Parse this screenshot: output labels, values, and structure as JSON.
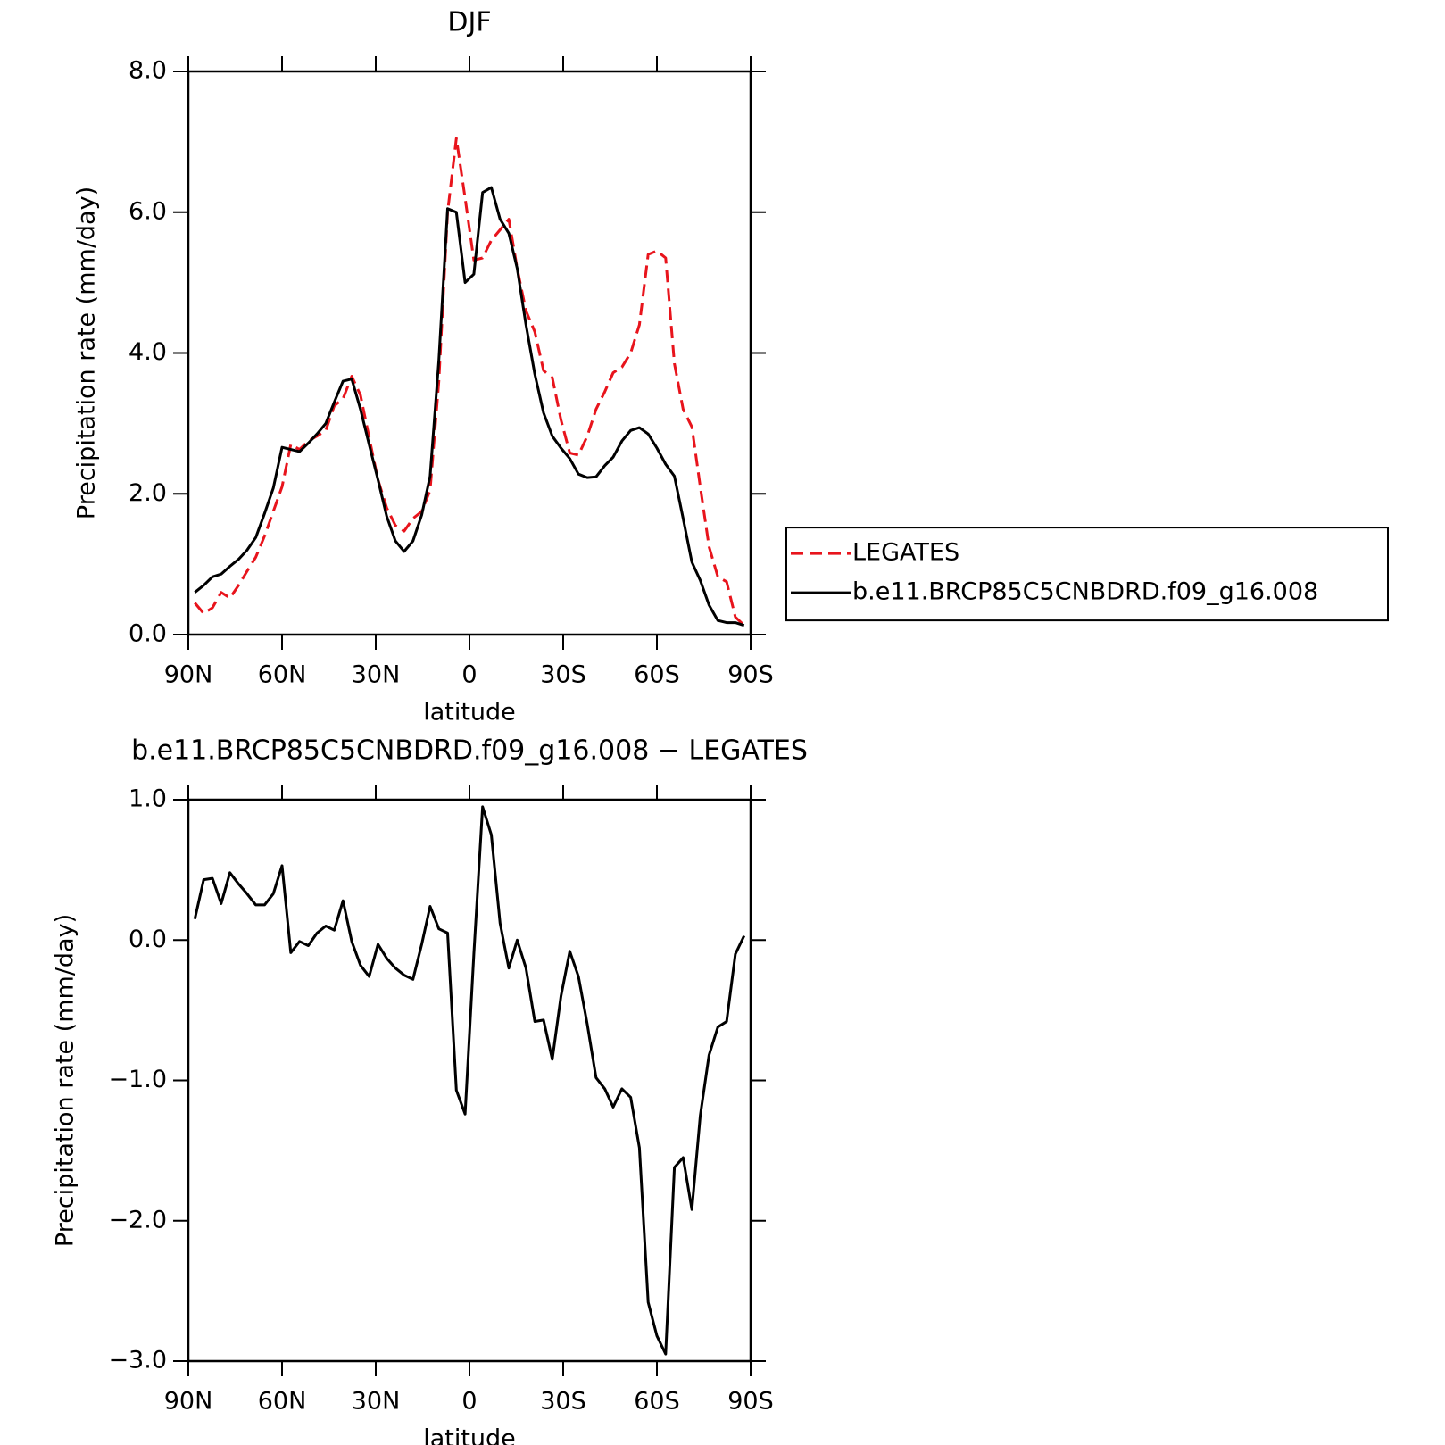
{
  "chart_data": [
    {
      "type": "line",
      "title": "DJF",
      "xlabel": "latitude",
      "ylabel": "Precipitation rate (mm/day)",
      "xlim": [
        90,
        -90
      ],
      "xticks": [
        {
          "value": 90,
          "label": "90N"
        },
        {
          "value": 60,
          "label": "60N"
        },
        {
          "value": 30,
          "label": "30N"
        },
        0,
        {
          "value": -30,
          "label": "30S"
        },
        {
          "value": -60,
          "label": "60S"
        },
        {
          "value": -90,
          "label": "90S"
        }
      ],
      "ylim": [
        0,
        8
      ],
      "yticks": [
        {
          "value": 0,
          "label": "0.0"
        },
        {
          "value": 2,
          "label": "2.0"
        },
        {
          "value": 4,
          "label": "4.0"
        },
        {
          "value": 6,
          "label": "6.0"
        },
        {
          "value": 8,
          "label": "8.0"
        }
      ],
      "legend": "right",
      "x": [
        87.9,
        85.1,
        82.3,
        79.5,
        76.7,
        73.9,
        71.2,
        68.4,
        65.6,
        62.8,
        60.0,
        57.2,
        54.4,
        51.6,
        48.8,
        46.0,
        43.3,
        40.5,
        37.7,
        34.9,
        32.1,
        29.3,
        26.5,
        23.7,
        20.9,
        18.1,
        15.3,
        12.6,
        9.8,
        7.0,
        4.2,
        1.4,
        -1.4,
        -4.2,
        -7.0,
        -9.8,
        -12.6,
        -15.3,
        -18.1,
        -20.9,
        -23.7,
        -26.5,
        -29.3,
        -32.1,
        -34.9,
        -37.7,
        -40.5,
        -43.3,
        -46.0,
        -48.8,
        -51.6,
        -54.4,
        -57.2,
        -60.0,
        -62.8,
        -65.6,
        -68.4,
        -71.2,
        -73.9,
        -76.7,
        -79.5,
        -82.3,
        -85.1,
        -87.9
      ],
      "series": [
        {
          "name": "LEGATES",
          "color": "#e8141c",
          "style": "dashed",
          "values": [
            0.45,
            0.3,
            0.38,
            0.6,
            0.52,
            0.7,
            0.9,
            1.1,
            1.4,
            1.75,
            2.1,
            2.7,
            2.63,
            2.75,
            2.82,
            2.9,
            3.25,
            3.35,
            3.67,
            3.4,
            2.8,
            2.2,
            1.8,
            1.55,
            1.47,
            1.65,
            1.75,
            2.05,
            3.6,
            6.0,
            7.05,
            6.2,
            5.32,
            5.35,
            5.6,
            5.75,
            5.9,
            5.2,
            4.6,
            4.3,
            3.75,
            3.65,
            3.05,
            2.58,
            2.55,
            2.82,
            3.2,
            3.45,
            3.72,
            3.8,
            4.0,
            4.4,
            5.4,
            5.45,
            5.35,
            3.85,
            3.2,
            2.95,
            2.1,
            1.25,
            0.82,
            0.75,
            0.25,
            0.13
          ]
        },
        {
          "name": "b.e11.BRCP85C5CNBDRD.f09_g16.008",
          "color": "#000000",
          "style": "solid",
          "values": [
            0.6,
            0.7,
            0.82,
            0.86,
            0.97,
            1.07,
            1.2,
            1.38,
            1.72,
            2.08,
            2.66,
            2.63,
            2.6,
            2.72,
            2.85,
            3.0,
            3.3,
            3.6,
            3.63,
            3.2,
            2.7,
            2.2,
            1.68,
            1.33,
            1.18,
            1.33,
            1.7,
            2.25,
            3.9,
            6.05,
            6.0,
            5.0,
            5.12,
            6.28,
            6.35,
            5.9,
            5.7,
            5.2,
            4.4,
            3.7,
            3.15,
            2.82,
            2.65,
            2.5,
            2.28,
            2.23,
            2.24,
            2.4,
            2.52,
            2.75,
            2.9,
            2.94,
            2.85,
            2.65,
            2.42,
            2.25,
            1.65,
            1.03,
            0.77,
            0.42,
            0.2,
            0.17,
            0.17,
            0.13
          ]
        }
      ]
    },
    {
      "type": "line",
      "title": "b.e11.BRCP85C5CNBDRD.f09_g16.008 − LEGATES",
      "xlabel": "latitude",
      "ylabel": "Precipitation rate (mm/day)",
      "xlim": [
        90,
        -90
      ],
      "xticks": [
        {
          "value": 90,
          "label": "90N"
        },
        {
          "value": 60,
          "label": "60N"
        },
        {
          "value": 30,
          "label": "30N"
        },
        0,
        {
          "value": -30,
          "label": "30S"
        },
        {
          "value": -60,
          "label": "60S"
        },
        {
          "value": -90,
          "label": "90S"
        }
      ],
      "ylim": [
        -3,
        1
      ],
      "yticks": [
        {
          "value": -3,
          "label": "−3.0"
        },
        {
          "value": -2,
          "label": "−2.0"
        },
        {
          "value": -1,
          "label": "−1.0"
        },
        {
          "value": 0,
          "label": "0.0"
        },
        {
          "value": 1,
          "label": "1.0"
        }
      ],
      "color": "#000000",
      "x": [
        87.9,
        85.1,
        82.3,
        79.5,
        76.7,
        73.9,
        71.2,
        68.4,
        65.6,
        62.8,
        60.0,
        57.2,
        54.4,
        51.6,
        48.8,
        46.0,
        43.3,
        40.5,
        37.7,
        34.9,
        32.1,
        29.3,
        26.5,
        23.7,
        20.9,
        18.1,
        15.3,
        12.6,
        9.8,
        7.0,
        4.2,
        1.4,
        -1.4,
        -4.2,
        -7.0,
        -9.8,
        -12.6,
        -15.3,
        -18.1,
        -20.9,
        -23.7,
        -26.5,
        -29.3,
        -32.1,
        -34.9,
        -37.7,
        -40.5,
        -43.3,
        -46.0,
        -48.8,
        -51.6,
        -54.4,
        -57.2,
        -60.0,
        -62.8,
        -65.6,
        -68.4,
        -71.2,
        -73.9,
        -76.7,
        -79.5,
        -82.3,
        -85.1,
        -87.9
      ],
      "values": [
        0.15,
        0.43,
        0.44,
        0.26,
        0.48,
        0.4,
        0.33,
        0.25,
        0.25,
        0.33,
        0.53,
        -0.09,
        -0.01,
        -0.04,
        0.05,
        0.1,
        0.07,
        0.28,
        -0.01,
        -0.18,
        -0.26,
        -0.03,
        -0.13,
        -0.2,
        -0.25,
        -0.28,
        -0.03,
        0.24,
        0.08,
        0.05,
        -1.07,
        -1.24,
        -0.1,
        0.95,
        0.75,
        0.12,
        -0.2,
        0.0,
        -0.2,
        -0.58,
        -0.57,
        -0.85,
        -0.4,
        -0.08,
        -0.26,
        -0.6,
        -0.98,
        -1.06,
        -1.19,
        -1.06,
        -1.12,
        -1.48,
        -2.58,
        -2.82,
        -2.95,
        -1.62,
        -1.55,
        -1.92,
        -1.25,
        -0.82,
        -0.62,
        -0.58,
        -0.1,
        0.03
      ]
    }
  ]
}
